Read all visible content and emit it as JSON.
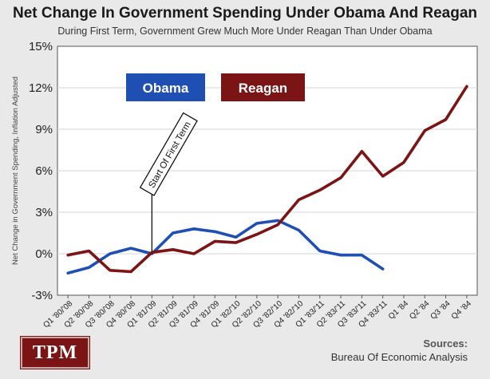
{
  "header": {
    "title": "Net Change In Government Spending Under Obama And Reagan",
    "subtitle": "During First Term, Government Grew Much More Under Reagan Than Under Obama"
  },
  "footer": {
    "logo_text": "TPM",
    "sources_label": "Sources:",
    "sources_value": "Bureau Of Economic Analysis"
  },
  "annotation": {
    "text": "Start Of First Term",
    "x_category": "Q1 '81/'09"
  },
  "colors": {
    "obama": "#1f4fb3",
    "reagan": "#7b1414"
  },
  "chart_data": {
    "type": "line",
    "title": "Net Change In Government Spending Under Obama And Reagan",
    "subtitle": "During First Term, Government Grew Much More Under Reagan Than Under Obama",
    "ylabel": "Net Change in Government Spending, Inflation Adjusted",
    "xlabel": "",
    "ylim": [
      -3,
      15
    ],
    "yticks": [
      "-3%",
      "0%",
      "3%",
      "6%",
      "9%",
      "12%",
      "15%"
    ],
    "grid": true,
    "legend": [
      "Obama",
      "Reagan"
    ],
    "categories": [
      "Q1 '80/'08",
      "Q2 '80/'08",
      "Q3 '80/'08",
      "Q4 '80/'08",
      "Q1 '81/'09",
      "Q2 '81/'09",
      "Q3 '81/'09",
      "Q4 '81/'09",
      "Q1 '82/'10",
      "Q2 '82/'10",
      "Q3 '82/'10",
      "Q4 '82/'10",
      "Q1 '83/'11",
      "Q2 '83/'11",
      "Q3 '83/'11",
      "Q4 '83/'11",
      "Q1 '84",
      "Q2 '84",
      "Q3 '84",
      "Q4 '84"
    ],
    "series": [
      {
        "name": "Obama",
        "values": [
          -1.4,
          -1.0,
          0.0,
          0.4,
          0.0,
          1.5,
          1.8,
          1.6,
          1.2,
          2.2,
          2.4,
          1.7,
          0.2,
          -0.1,
          -0.1,
          -1.1,
          null,
          null,
          null,
          null
        ]
      },
      {
        "name": "Reagan",
        "values": [
          -0.1,
          0.2,
          -1.2,
          -1.3,
          0.1,
          0.3,
          0.0,
          0.9,
          0.8,
          1.4,
          2.1,
          3.9,
          4.6,
          5.5,
          7.4,
          5.6,
          6.6,
          8.9,
          9.7,
          12.1
        ]
      }
    ]
  }
}
